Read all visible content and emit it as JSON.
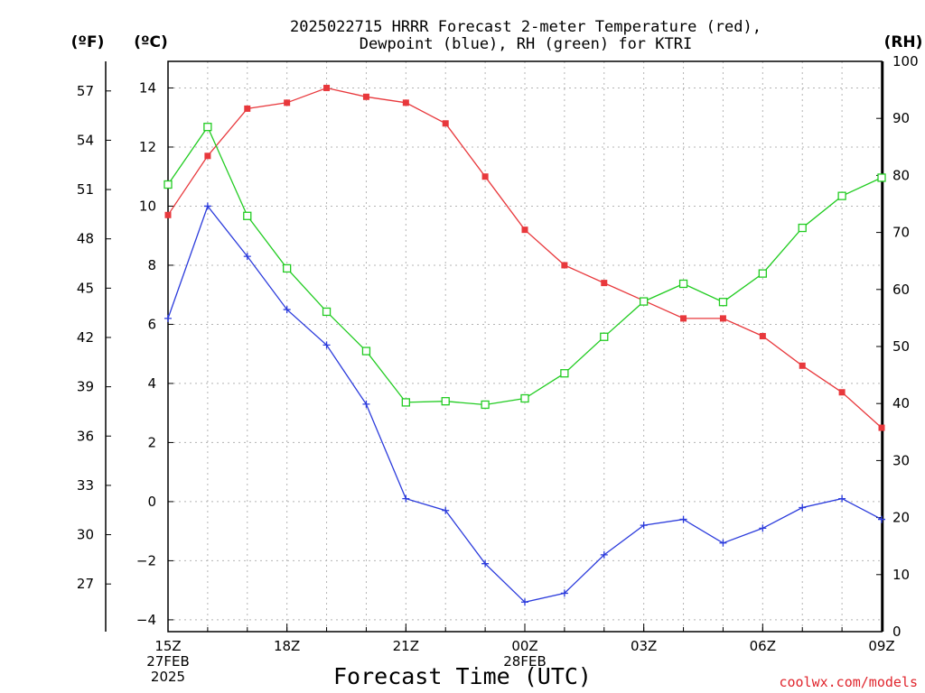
{
  "chart_data": {
    "type": "line",
    "title": [
      "2025022715 HRRR Forecast 2-meter Temperature (red),",
      "Dewpoint (blue), RH (green) for KTRI"
    ],
    "xlabel": "Forecast Time (UTC)",
    "credit": "coolwx.com/models",
    "unit_labels": {
      "fahrenheit": "(ºF)",
      "celsius": "(ºC)",
      "rh": "(RH)"
    },
    "x_hours": [
      0,
      1,
      2,
      3,
      4,
      5,
      6,
      7,
      8,
      9,
      10,
      11,
      12,
      13,
      14,
      15,
      16,
      17,
      18
    ],
    "x_ticks": [
      {
        "hour": 0,
        "lines": [
          "15Z",
          "27FEB",
          "2025"
        ]
      },
      {
        "hour": 3,
        "lines": [
          "18Z"
        ]
      },
      {
        "hour": 6,
        "lines": [
          "21Z"
        ]
      },
      {
        "hour": 9,
        "lines": [
          "00Z",
          "28FEB"
        ]
      },
      {
        "hour": 12,
        "lines": [
          "03Z"
        ]
      },
      {
        "hour": 15,
        "lines": [
          "06Z"
        ]
      },
      {
        "hour": 18,
        "lines": [
          "09Z"
        ]
      }
    ],
    "left_axis_c": {
      "range": [
        -4.4,
        14.9
      ],
      "ticks": [
        -4,
        -2,
        0,
        2,
        4,
        6,
        8,
        10,
        12,
        14
      ]
    },
    "left_axis_f": {
      "range": [
        24.1,
        58.8
      ],
      "ticks": [
        27,
        30,
        33,
        36,
        39,
        42,
        45,
        48,
        51,
        54,
        57
      ]
    },
    "right_axis_rh": {
      "range": [
        0,
        100
      ],
      "ticks": [
        0,
        10,
        20,
        30,
        40,
        50,
        60,
        70,
        80,
        90,
        100
      ]
    },
    "grid": true,
    "series": [
      {
        "name": "Temperature",
        "axis": "c",
        "color": "#e8383c",
        "marker": "filled-square",
        "values": [
          9.7,
          11.7,
          13.3,
          13.5,
          14.0,
          13.7,
          13.5,
          12.8,
          11.0,
          9.2,
          8.0,
          7.4,
          6.8,
          6.2,
          6.2,
          5.6,
          4.6,
          3.7,
          2.5
        ]
      },
      {
        "name": "Dewpoint",
        "axis": "c",
        "color": "#2b3bdc",
        "marker": "plus",
        "values": [
          6.2,
          10.0,
          8.3,
          6.5,
          5.3,
          3.3,
          0.1,
          -0.3,
          -2.1,
          -3.4,
          -3.1,
          -1.8,
          -0.8,
          -0.6,
          -1.4,
          -0.9,
          -0.2,
          0.1,
          -0.6
        ]
      },
      {
        "name": "RH",
        "axis": "rh",
        "color": "#22cc22",
        "marker": "open-square",
        "values": [
          78.4,
          88.5,
          72.9,
          63.7,
          56.1,
          49.2,
          40.2,
          40.4,
          39.8,
          40.9,
          45.3,
          51.7,
          57.9,
          61.0,
          57.8,
          62.8,
          70.8,
          76.4,
          79.6
        ]
      }
    ]
  }
}
